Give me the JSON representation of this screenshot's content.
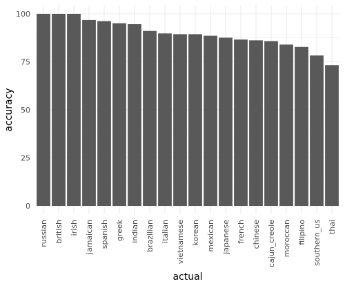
{
  "chart_data": {
    "type": "bar",
    "xlabel": "actual",
    "ylabel": "accuracy",
    "categories": [
      "russian",
      "british",
      "irish",
      "jamaican",
      "spanish",
      "greek",
      "indian",
      "brazilian",
      "italian",
      "vietnamese",
      "korean",
      "mexican",
      "japanese",
      "french",
      "chinese",
      "cajun_creole",
      "moroccan",
      "filipino",
      "southern_us",
      "thai"
    ],
    "values": [
      100,
      100,
      100,
      96.8,
      96.2,
      95.1,
      94.6,
      91.1,
      89.8,
      89.4,
      89.4,
      88.6,
      87.6,
      86.6,
      86.2,
      85.8,
      84.0,
      82.8,
      78.3,
      73.3
    ],
    "ylim": [
      0,
      100
    ],
    "yticks": [
      0,
      25,
      50,
      75,
      100
    ],
    "grid": true,
    "bar_color": "#595959",
    "grid_color": "#ebebeb"
  }
}
